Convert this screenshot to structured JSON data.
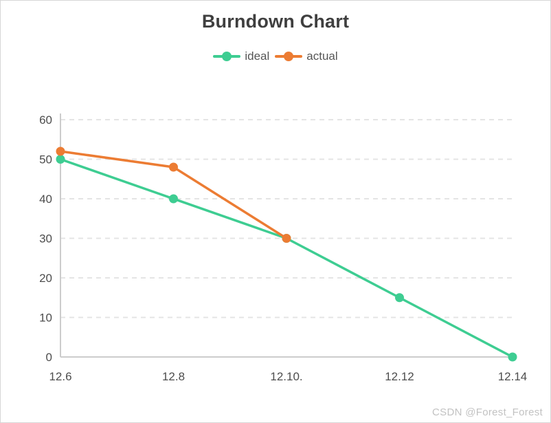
{
  "page": {
    "background": "#ffffff",
    "border_color": "#d6d6d6"
  },
  "watermark": {
    "text": "CSDN @Forest_Forest",
    "color": "#c2c2c2"
  },
  "chart_data": {
    "type": "line",
    "title": "Burndown Chart",
    "title_color": "#3f3f3f",
    "categories": [
      "12.6",
      "12.8",
      "12.10.",
      "12.12",
      "12.14"
    ],
    "series": [
      {
        "name": "ideal",
        "color": "#3ecd92",
        "values": [
          50,
          40,
          30,
          15,
          0
        ]
      },
      {
        "name": "actual",
        "color": "#ec7c33",
        "values": [
          52,
          48,
          30,
          null,
          null
        ]
      }
    ],
    "ylim": [
      0,
      60
    ],
    "ytick_step": 10,
    "yticks": [
      0,
      10,
      20,
      30,
      40,
      50,
      60
    ],
    "xlabel": "",
    "ylabel": "",
    "grid": "horizontal-dashed",
    "legend_position": "top",
    "axis_color": "#cccccc",
    "grid_color": "#e4e4e4",
    "tick_label_color": "#4d4d4d",
    "legend_label_color": "#555555",
    "marker_shape": "circle",
    "marker_radius": 6.5,
    "line_width": 3.5
  }
}
